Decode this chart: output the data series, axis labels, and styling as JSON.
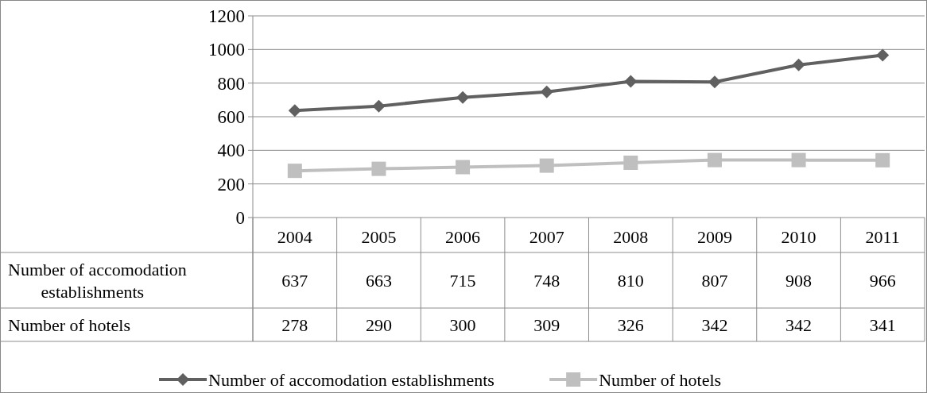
{
  "chart_data": {
    "type": "line",
    "categories": [
      "2004",
      "2005",
      "2006",
      "2007",
      "2008",
      "2009",
      "2010",
      "2011"
    ],
    "series": [
      {
        "name": "Number of accomodation establishments",
        "color": "#606060",
        "marker": "diamond",
        "values": [
          637,
          663,
          715,
          748,
          810,
          807,
          908,
          966
        ]
      },
      {
        "name": "Number of hotels",
        "color": "#bfbfbf",
        "marker": "square",
        "values": [
          278,
          290,
          300,
          309,
          326,
          342,
          342,
          341
        ]
      }
    ],
    "ylim": [
      0,
      1200
    ],
    "yticks": [
      0,
      200,
      400,
      600,
      800,
      1000,
      1200
    ],
    "grid": "y",
    "legend": "bottom",
    "data_labels": true,
    "line_style": "solid"
  }
}
